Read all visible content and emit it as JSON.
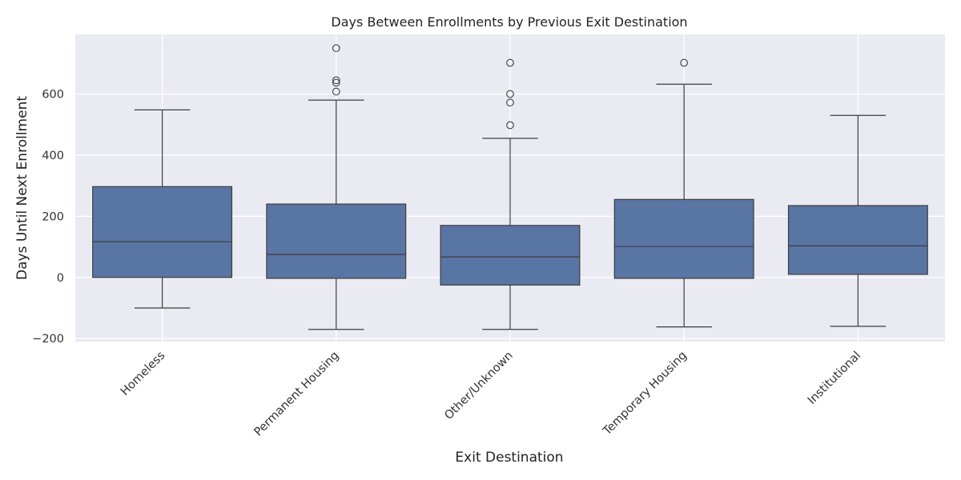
{
  "chart_data": {
    "type": "box",
    "title": "Days Between Enrollments by Previous Exit Destination",
    "xlabel": "Exit Destination",
    "ylabel": "Days Until Next Enrollment",
    "categories": [
      "Homeless",
      "Permanent Housing",
      "Other/Unknown",
      "Temporary Housing",
      "Institutional"
    ],
    "ylim": [
      -210,
      795
    ],
    "yticks": [
      -200,
      0,
      200,
      400,
      600
    ],
    "grid": true,
    "color": "#5975a4",
    "plot_bg": "#eaeaf2",
    "line_color": "#3d3d3d",
    "boxes": [
      {
        "category": "Homeless",
        "whislo": -100,
        "q1": 0,
        "median": 117,
        "q3": 297,
        "whishi": 548,
        "outliers": []
      },
      {
        "category": "Permanent Housing",
        "whislo": -170,
        "q1": -3,
        "median": 75,
        "q3": 240,
        "whishi": 580,
        "outliers": [
          608,
          637,
          645,
          750
        ]
      },
      {
        "category": "Other/Unknown",
        "whislo": -170,
        "q1": -25,
        "median": 67,
        "q3": 170,
        "whishi": 455,
        "outliers": [
          498,
          572,
          600,
          702
        ]
      },
      {
        "category": "Temporary Housing",
        "whislo": -162,
        "q1": -3,
        "median": 101,
        "q3": 255,
        "whishi": 632,
        "outliers": [
          702
        ]
      },
      {
        "category": "Institutional",
        "whislo": -160,
        "q1": 10,
        "median": 103,
        "q3": 235,
        "whishi": 530,
        "outliers": []
      }
    ]
  }
}
